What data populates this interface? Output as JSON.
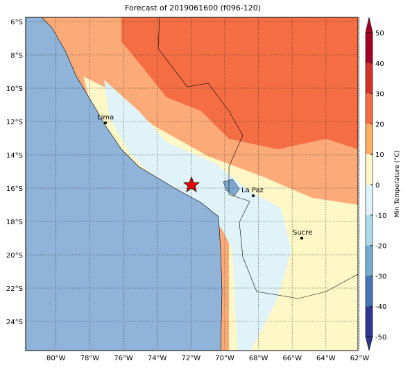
{
  "title": "Forecast of 2019061600 (f096-120)",
  "map": {
    "xlim": [
      -81.8,
      -62.1
    ],
    "ylim": [
      -25.75,
      -5.75
    ],
    "xticks": [
      {
        "value": -80,
        "label": "80°W"
      },
      {
        "value": -78,
        "label": "78°W"
      },
      {
        "value": -76,
        "label": "76°W"
      },
      {
        "value": -74,
        "label": "74°W"
      },
      {
        "value": -72,
        "label": "72°W"
      },
      {
        "value": -70,
        "label": "70°W"
      },
      {
        "value": -68,
        "label": "68°W"
      },
      {
        "value": -66,
        "label": "66°W"
      },
      {
        "value": -64,
        "label": "64°W"
      },
      {
        "value": -62,
        "label": "62°W"
      }
    ],
    "yticks": [
      {
        "value": -6,
        "label": "6°S"
      },
      {
        "value": -8,
        "label": "8°S"
      },
      {
        "value": -10,
        "label": "10°S"
      },
      {
        "value": -12,
        "label": "12°S"
      },
      {
        "value": -14,
        "label": "14°S"
      },
      {
        "value": -16,
        "label": "16°S"
      },
      {
        "value": -18,
        "label": "18°S"
      },
      {
        "value": -20,
        "label": "20°S"
      },
      {
        "value": -22,
        "label": "22°S"
      },
      {
        "value": -24,
        "label": "24°S"
      }
    ],
    "cities": [
      "Lima",
      "La Paz",
      "Sucre"
    ]
  },
  "colorbar": {
    "label": "Min Temperature (°C)",
    "lim": [
      -50,
      50
    ],
    "ticks": [
      -50,
      -40,
      -30,
      -20,
      -10,
      0,
      10,
      20,
      30,
      40,
      50
    ],
    "colors": [
      "#313695",
      "#4575b4",
      "#74add1",
      "#abd9e9",
      "#e0f3f8",
      "#fef7c6",
      "#fdae61",
      "#f46d43",
      "#d73027",
      "#a50026"
    ]
  }
}
